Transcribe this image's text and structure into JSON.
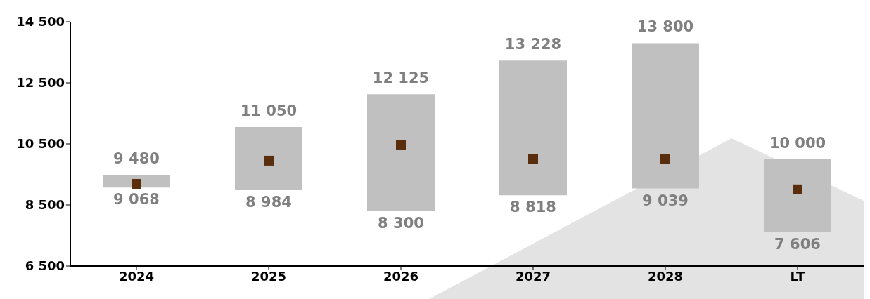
{
  "chart_data": {
    "type": "bar",
    "categories": [
      "2024",
      "2025",
      "2026",
      "2027",
      "2028",
      "LT"
    ],
    "series": [
      {
        "color": "#c0c0c0",
        "base": [
          9068,
          8984,
          8300,
          8818,
          9039,
          7606
        ],
        "values": [
          412,
          2066,
          3825,
          4410,
          4761,
          2394
        ]
      },
      {
        "type": "scatter",
        "color": "#5a2d0c",
        "marker": "square",
        "values": [
          9190,
          9950,
          10460,
          10000,
          10000,
          9010
        ]
      }
    ],
    "ylim": [
      6500,
      14500
    ],
    "yticks": [
      {
        "value": 6500,
        "label": "6 500"
      },
      {
        "value": 8500,
        "label": "8 500"
      },
      {
        "value": 10500,
        "label": "10 500"
      },
      {
        "value": 12500,
        "label": "12 500"
      },
      {
        "value": 14500,
        "label": "14 500"
      }
    ],
    "annotations": [
      {
        "text": "9 480",
        "x": "2024",
        "y": 9480
      },
      {
        "text": "9 068",
        "x": "2024",
        "y": 9068
      },
      {
        "text": "11 050",
        "x": "2025",
        "y": 11050
      },
      {
        "text": "8 984",
        "x": "2025",
        "y": 8984
      },
      {
        "text": "12 125",
        "x": "2026",
        "y": 12125
      },
      {
        "text": "8 300",
        "x": "2026",
        "y": 8300
      },
      {
        "text": "13 228",
        "x": "2027",
        "y": 13228
      },
      {
        "text": "8 818",
        "x": "2027",
        "y": 8818
      },
      {
        "text": "13 800",
        "x": "2028",
        "y": 13800
      },
      {
        "text": "9 039",
        "x": "2028",
        "y": 9039
      },
      {
        "text": "10 000",
        "x": "LT",
        "y": 10000
      },
      {
        "text": "7 606",
        "x": "LT",
        "y": 7606
      }
    ],
    "grid": false,
    "legend": false
  }
}
